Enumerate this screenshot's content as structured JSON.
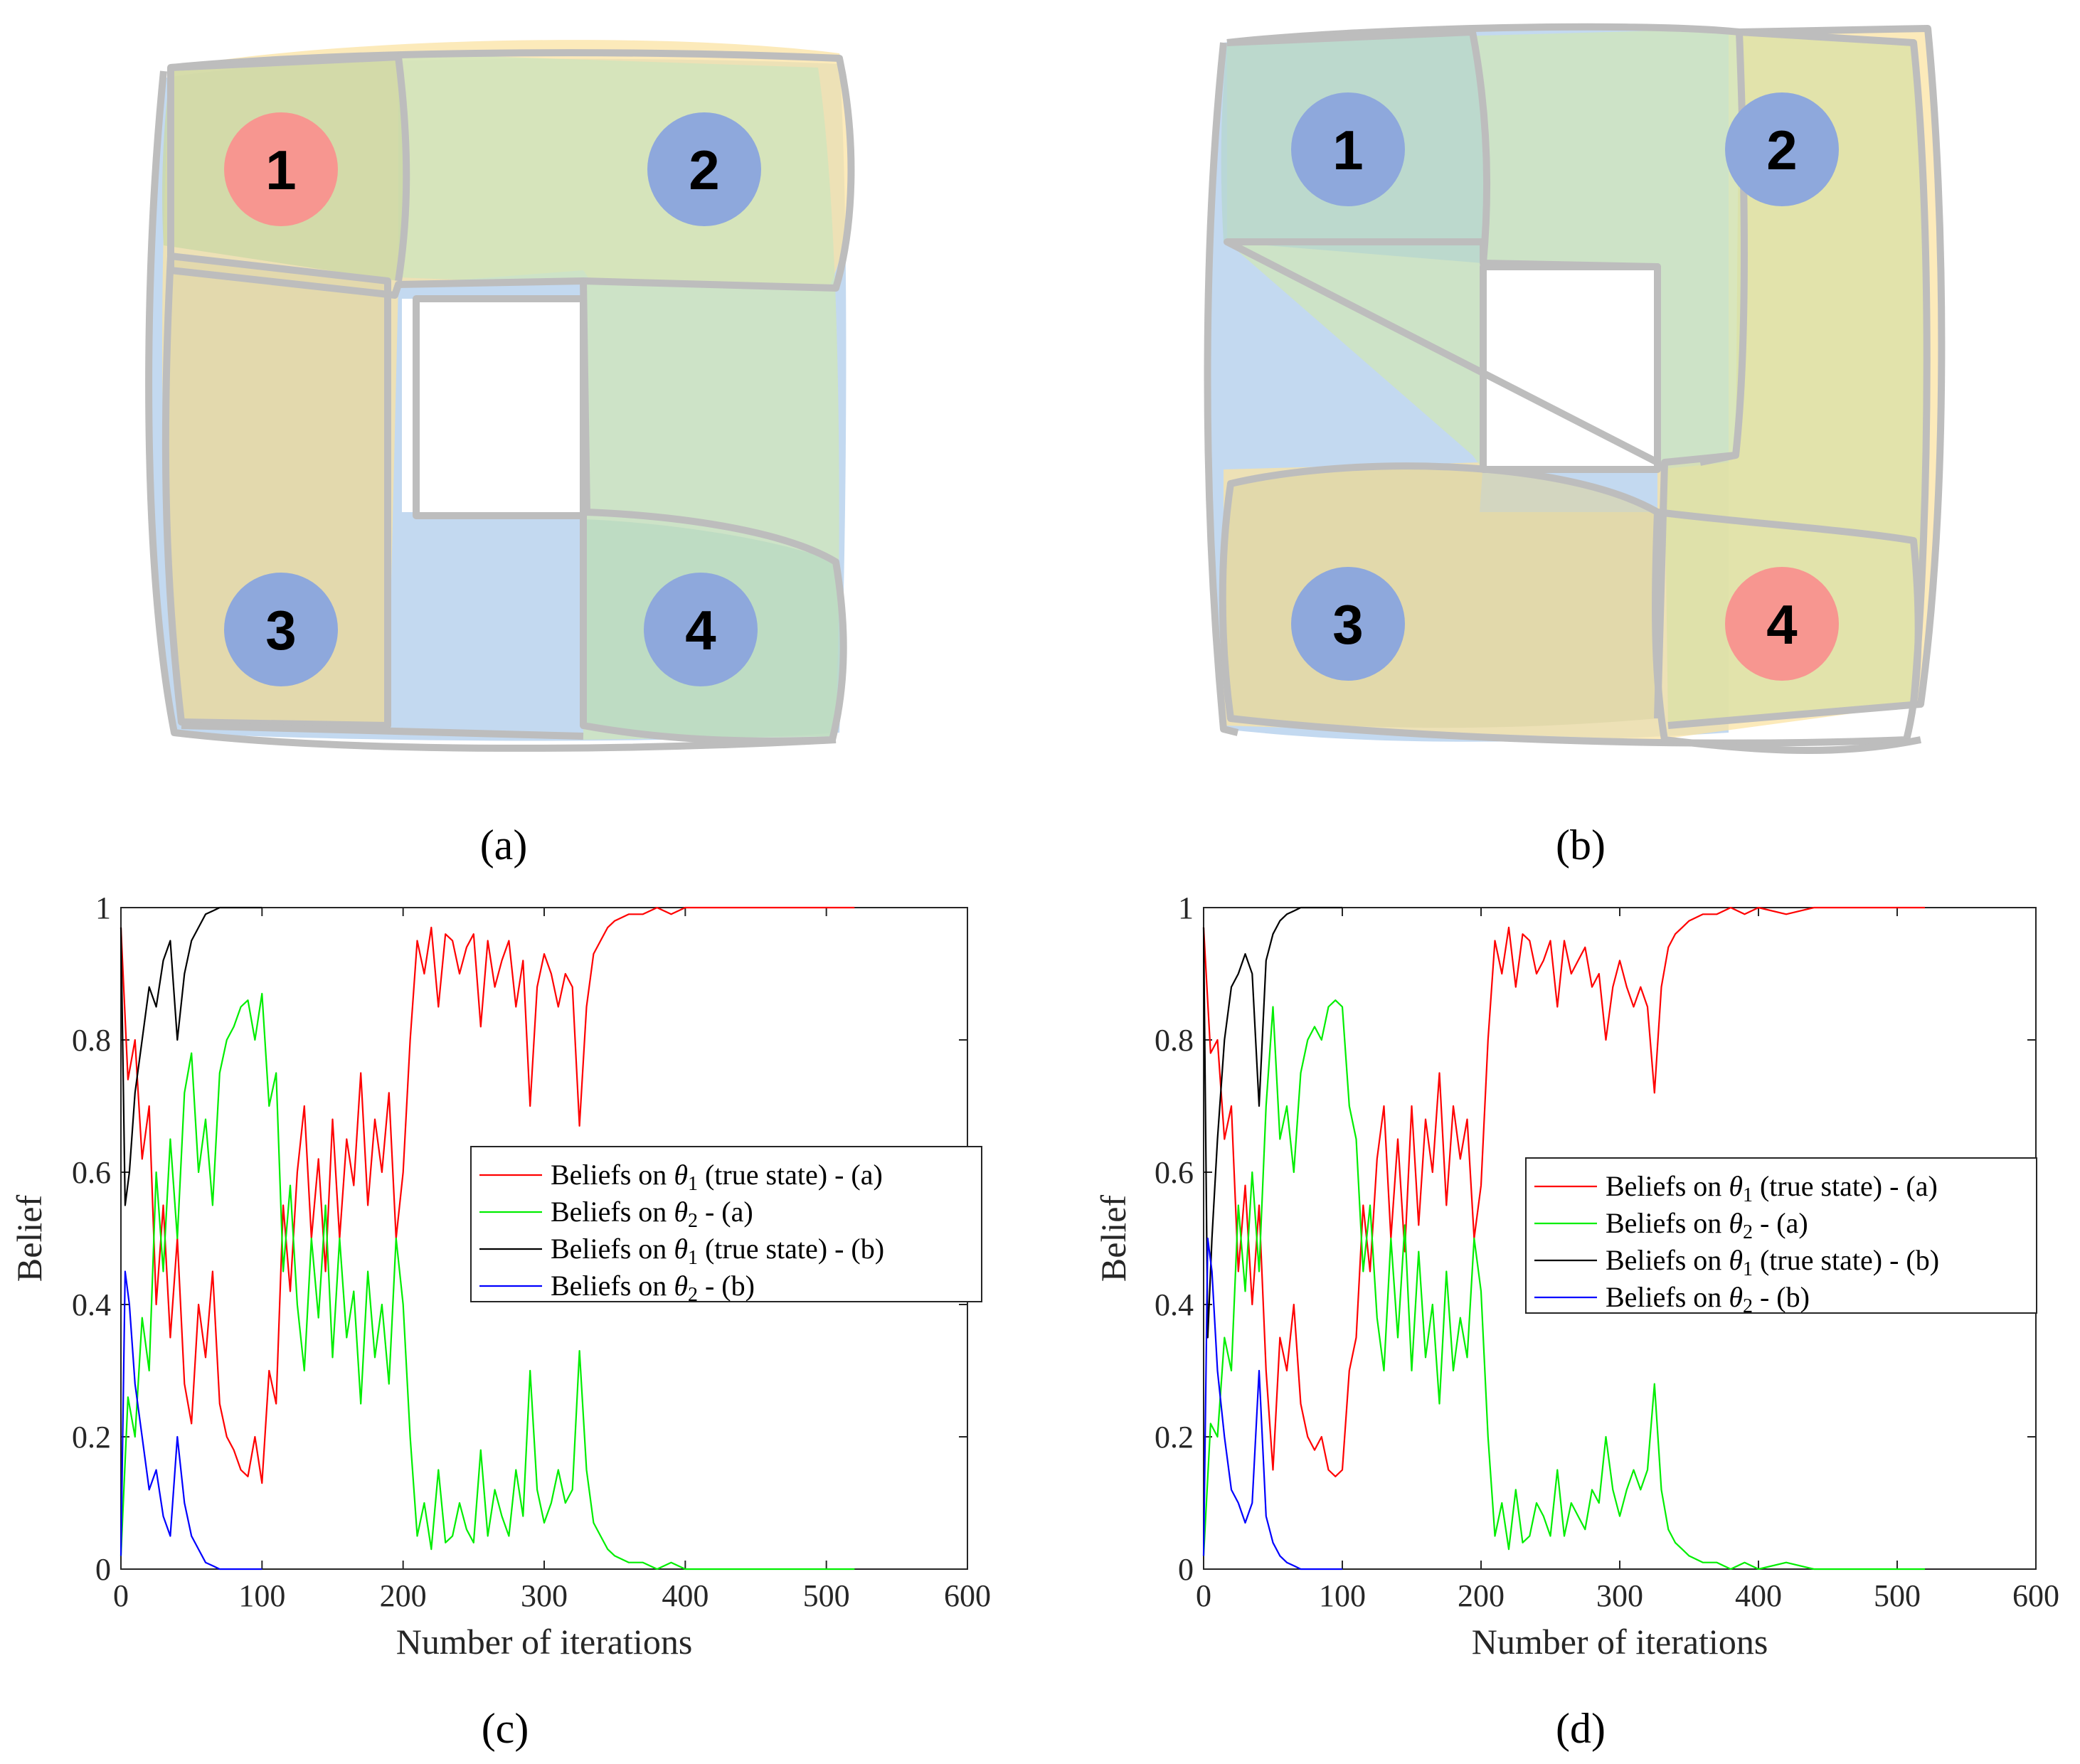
{
  "captions": {
    "a": "(a)",
    "b": "(b)",
    "c": "(c)",
    "d": "(d)"
  },
  "diagrams": [
    {
      "id": "a",
      "nodes": [
        {
          "label": "1",
          "color": "#f79690"
        },
        {
          "label": "2",
          "color": "#8ea8dc"
        },
        {
          "label": "3",
          "color": "#8ea8dc"
        },
        {
          "label": "4",
          "color": "#8ea8dc"
        }
      ]
    },
    {
      "id": "b",
      "nodes": [
        {
          "label": "1",
          "color": "#8ea8dc"
        },
        {
          "label": "2",
          "color": "#8ea8dc"
        },
        {
          "label": "3",
          "color": "#8ea8dc"
        },
        {
          "label": "4",
          "color": "#f79690"
        }
      ]
    }
  ],
  "region_colors": {
    "blue": "#a9c9ea",
    "yellow": "#fbe3a3",
    "green": "#cfe5bd",
    "olive": "#d9e0a6",
    "outline": "#bdbdbd"
  },
  "chart_data": [
    {
      "type": "line",
      "panel": "c",
      "xlabel": "Number of iterations",
      "ylabel": "Belief",
      "xlim": [
        0,
        600
      ],
      "ylim": [
        0,
        1
      ],
      "xticks": [
        "0",
        "100",
        "200",
        "300",
        "400",
        "500",
        "600"
      ],
      "yticks": [
        "0",
        "0.2",
        "0.4",
        "0.6",
        "0.8",
        "1"
      ],
      "legend_position": "middle-right",
      "series": [
        {
          "name": "Beliefs on θ1 (true state) - (a)",
          "legend_main": "Beliefs on ",
          "legend_sym": "θ",
          "legend_sub": "1",
          "legend_rest": " (true state) - (a)",
          "color": "#ff0000",
          "x": [
            0,
            5,
            10,
            15,
            20,
            25,
            30,
            35,
            40,
            45,
            50,
            55,
            60,
            65,
            70,
            75,
            80,
            85,
            90,
            95,
            100,
            105,
            110,
            115,
            120,
            125,
            130,
            135,
            140,
            145,
            150,
            155,
            160,
            165,
            170,
            175,
            180,
            185,
            190,
            195,
            200,
            205,
            210,
            215,
            220,
            225,
            230,
            235,
            240,
            245,
            250,
            255,
            260,
            265,
            270,
            275,
            280,
            285,
            290,
            295,
            300,
            305,
            310,
            315,
            320,
            325,
            330,
            335,
            340,
            345,
            350,
            360,
            370,
            380,
            390,
            400,
            420,
            440,
            460,
            480,
            500,
            520
          ],
          "y": [
            0.97,
            0.74,
            0.8,
            0.62,
            0.7,
            0.4,
            0.55,
            0.35,
            0.5,
            0.28,
            0.22,
            0.4,
            0.32,
            0.45,
            0.25,
            0.2,
            0.18,
            0.15,
            0.14,
            0.2,
            0.13,
            0.3,
            0.25,
            0.55,
            0.42,
            0.6,
            0.7,
            0.5,
            0.62,
            0.45,
            0.68,
            0.5,
            0.65,
            0.58,
            0.75,
            0.55,
            0.68,
            0.6,
            0.72,
            0.5,
            0.6,
            0.8,
            0.95,
            0.9,
            0.97,
            0.85,
            0.96,
            0.95,
            0.9,
            0.94,
            0.96,
            0.82,
            0.95,
            0.88,
            0.92,
            0.95,
            0.85,
            0.92,
            0.7,
            0.88,
            0.93,
            0.9,
            0.85,
            0.9,
            0.88,
            0.67,
            0.85,
            0.93,
            0.95,
            0.97,
            0.98,
            0.99,
            0.99,
            1.0,
            0.99,
            1.0,
            1.0,
            1.0,
            1.0,
            1.0,
            1.0,
            1.0
          ]
        },
        {
          "name": "Beliefs on θ2 - (a)",
          "legend_main": "Beliefs on ",
          "legend_sym": "θ",
          "legend_sub": "2",
          "legend_rest": " - (a)",
          "color": "#00ee00",
          "x": [
            0,
            5,
            10,
            15,
            20,
            25,
            30,
            35,
            40,
            45,
            50,
            55,
            60,
            65,
            70,
            75,
            80,
            85,
            90,
            95,
            100,
            105,
            110,
            115,
            120,
            125,
            130,
            135,
            140,
            145,
            150,
            155,
            160,
            165,
            170,
            175,
            180,
            185,
            190,
            195,
            200,
            205,
            210,
            215,
            220,
            225,
            230,
            235,
            240,
            245,
            250,
            255,
            260,
            265,
            270,
            275,
            280,
            285,
            290,
            295,
            300,
            305,
            310,
            315,
            320,
            325,
            330,
            335,
            340,
            345,
            350,
            360,
            370,
            380,
            390,
            400,
            420,
            440,
            460,
            480,
            500,
            520
          ],
          "y": [
            0.02,
            0.26,
            0.2,
            0.38,
            0.3,
            0.6,
            0.45,
            0.65,
            0.5,
            0.72,
            0.78,
            0.6,
            0.68,
            0.55,
            0.75,
            0.8,
            0.82,
            0.85,
            0.86,
            0.8,
            0.87,
            0.7,
            0.75,
            0.45,
            0.58,
            0.4,
            0.3,
            0.5,
            0.38,
            0.55,
            0.32,
            0.5,
            0.35,
            0.42,
            0.25,
            0.45,
            0.32,
            0.4,
            0.28,
            0.5,
            0.4,
            0.2,
            0.05,
            0.1,
            0.03,
            0.15,
            0.04,
            0.05,
            0.1,
            0.06,
            0.04,
            0.18,
            0.05,
            0.12,
            0.08,
            0.05,
            0.15,
            0.08,
            0.3,
            0.12,
            0.07,
            0.1,
            0.15,
            0.1,
            0.12,
            0.33,
            0.15,
            0.07,
            0.05,
            0.03,
            0.02,
            0.01,
            0.01,
            0.0,
            0.01,
            0.0,
            0.0,
            0.0,
            0.0,
            0.0,
            0.0,
            0.0
          ]
        },
        {
          "name": "Beliefs on θ1 (true state) - (b)",
          "legend_main": "Beliefs on ",
          "legend_sym": "θ",
          "legend_sub": "1",
          "legend_rest": " (true state) - (b)",
          "color": "#000000",
          "x": [
            0,
            3,
            6,
            10,
            15,
            20,
            25,
            30,
            35,
            40,
            45,
            50,
            55,
            60,
            65,
            70,
            75,
            80,
            85,
            90,
            95,
            100
          ],
          "y": [
            0.97,
            0.55,
            0.6,
            0.72,
            0.8,
            0.88,
            0.85,
            0.92,
            0.95,
            0.8,
            0.9,
            0.95,
            0.97,
            0.99,
            0.995,
            1.0,
            1.0,
            1.0,
            1.0,
            1.0,
            1.0,
            1.0
          ]
        },
        {
          "name": "Beliefs on θ2 - (b)",
          "legend_main": "Beliefs on ",
          "legend_sym": "θ",
          "legend_sub": "2",
          "legend_rest": " - (b)",
          "color": "#0000ff",
          "x": [
            0,
            3,
            6,
            10,
            15,
            20,
            25,
            30,
            35,
            40,
            45,
            50,
            55,
            60,
            65,
            70,
            75,
            80,
            85,
            90,
            95,
            100
          ],
          "y": [
            0.02,
            0.45,
            0.4,
            0.28,
            0.2,
            0.12,
            0.15,
            0.08,
            0.05,
            0.2,
            0.1,
            0.05,
            0.03,
            0.01,
            0.005,
            0.0,
            0.0,
            0.0,
            0.0,
            0.0,
            0.0,
            0.0
          ]
        }
      ]
    },
    {
      "type": "line",
      "panel": "d",
      "xlabel": "Number of iterations",
      "ylabel": "Belief",
      "xlim": [
        0,
        600
      ],
      "ylim": [
        0,
        1
      ],
      "xticks": [
        "0",
        "100",
        "200",
        "300",
        "400",
        "500",
        "600"
      ],
      "yticks": [
        "0",
        "0.2",
        "0.4",
        "0.6",
        "0.8",
        "1"
      ],
      "legend_position": "middle-right",
      "series": [
        {
          "name": "Beliefs on θ1 (true state) - (a)",
          "legend_main": "Beliefs on ",
          "legend_sym": "θ",
          "legend_sub": "1",
          "legend_rest": " (true state) - (a)",
          "color": "#ff0000",
          "x": [
            0,
            5,
            10,
            15,
            20,
            25,
            30,
            35,
            40,
            45,
            50,
            55,
            60,
            65,
            70,
            75,
            80,
            85,
            90,
            95,
            100,
            105,
            110,
            115,
            120,
            125,
            130,
            135,
            140,
            145,
            150,
            155,
            160,
            165,
            170,
            175,
            180,
            185,
            190,
            195,
            200,
            205,
            210,
            215,
            220,
            225,
            230,
            235,
            240,
            245,
            250,
            255,
            260,
            265,
            270,
            275,
            280,
            285,
            290,
            295,
            300,
            305,
            310,
            315,
            320,
            325,
            330,
            335,
            340,
            345,
            350,
            360,
            370,
            380,
            390,
            400,
            420,
            440,
            460,
            480,
            500,
            520
          ],
          "y": [
            0.97,
            0.78,
            0.8,
            0.65,
            0.7,
            0.45,
            0.58,
            0.4,
            0.55,
            0.3,
            0.15,
            0.35,
            0.3,
            0.4,
            0.25,
            0.2,
            0.18,
            0.2,
            0.15,
            0.14,
            0.15,
            0.3,
            0.35,
            0.55,
            0.45,
            0.62,
            0.7,
            0.5,
            0.65,
            0.48,
            0.7,
            0.52,
            0.68,
            0.6,
            0.75,
            0.55,
            0.7,
            0.62,
            0.68,
            0.5,
            0.58,
            0.8,
            0.95,
            0.9,
            0.97,
            0.88,
            0.96,
            0.95,
            0.9,
            0.92,
            0.95,
            0.85,
            0.95,
            0.9,
            0.92,
            0.94,
            0.88,
            0.9,
            0.8,
            0.88,
            0.92,
            0.88,
            0.85,
            0.88,
            0.85,
            0.72,
            0.88,
            0.94,
            0.96,
            0.97,
            0.98,
            0.99,
            0.99,
            1.0,
            0.99,
            1.0,
            0.99,
            1.0,
            1.0,
            1.0,
            1.0,
            1.0
          ]
        },
        {
          "name": "Beliefs on θ2 - (a)",
          "legend_main": "Beliefs on ",
          "legend_sym": "θ",
          "legend_sub": "2",
          "legend_rest": " - (a)",
          "color": "#00ee00",
          "x": [
            0,
            5,
            10,
            15,
            20,
            25,
            30,
            35,
            40,
            45,
            50,
            55,
            60,
            65,
            70,
            75,
            80,
            85,
            90,
            95,
            100,
            105,
            110,
            115,
            120,
            125,
            130,
            135,
            140,
            145,
            150,
            155,
            160,
            165,
            170,
            175,
            180,
            185,
            190,
            195,
            200,
            205,
            210,
            215,
            220,
            225,
            230,
            235,
            240,
            245,
            250,
            255,
            260,
            265,
            270,
            275,
            280,
            285,
            290,
            295,
            300,
            305,
            310,
            315,
            320,
            325,
            330,
            335,
            340,
            345,
            350,
            360,
            370,
            380,
            390,
            400,
            420,
            440,
            460,
            480,
            500,
            520
          ],
          "y": [
            0.02,
            0.22,
            0.2,
            0.35,
            0.3,
            0.55,
            0.42,
            0.6,
            0.45,
            0.7,
            0.85,
            0.65,
            0.7,
            0.6,
            0.75,
            0.8,
            0.82,
            0.8,
            0.85,
            0.86,
            0.85,
            0.7,
            0.65,
            0.45,
            0.55,
            0.38,
            0.3,
            0.5,
            0.35,
            0.52,
            0.3,
            0.48,
            0.32,
            0.4,
            0.25,
            0.45,
            0.3,
            0.38,
            0.32,
            0.5,
            0.42,
            0.2,
            0.05,
            0.1,
            0.03,
            0.12,
            0.04,
            0.05,
            0.1,
            0.08,
            0.05,
            0.15,
            0.05,
            0.1,
            0.08,
            0.06,
            0.12,
            0.1,
            0.2,
            0.12,
            0.08,
            0.12,
            0.15,
            0.12,
            0.15,
            0.28,
            0.12,
            0.06,
            0.04,
            0.03,
            0.02,
            0.01,
            0.01,
            0.0,
            0.01,
            0.0,
            0.01,
            0.0,
            0.0,
            0.0,
            0.0,
            0.0
          ]
        },
        {
          "name": "Beliefs on θ1 (true state) - (b)",
          "legend_main": "Beliefs on ",
          "legend_sym": "θ",
          "legend_sub": "1",
          "legend_rest": " (true state) - (b)",
          "color": "#000000",
          "x": [
            0,
            3,
            6,
            10,
            15,
            20,
            25,
            30,
            35,
            40,
            45,
            50,
            55,
            60,
            65,
            70,
            75,
            80,
            85,
            90,
            95,
            100
          ],
          "y": [
            0.97,
            0.35,
            0.5,
            0.65,
            0.8,
            0.88,
            0.9,
            0.93,
            0.9,
            0.7,
            0.92,
            0.96,
            0.98,
            0.99,
            0.995,
            1.0,
            1.0,
            1.0,
            1.0,
            1.0,
            1.0,
            1.0
          ]
        },
        {
          "name": "Beliefs on θ2 - (b)",
          "legend_main": "Beliefs on ",
          "legend_sym": "θ",
          "legend_sub": "2",
          "legend_rest": " - (b)",
          "color": "#0000ff",
          "x": [
            0,
            3,
            6,
            10,
            15,
            20,
            25,
            30,
            35,
            40,
            45,
            50,
            55,
            60,
            65,
            70,
            75,
            80,
            85,
            90,
            95,
            100
          ],
          "y": [
            0.02,
            0.5,
            0.45,
            0.3,
            0.2,
            0.12,
            0.1,
            0.07,
            0.1,
            0.3,
            0.08,
            0.04,
            0.02,
            0.01,
            0.005,
            0.0,
            0.0,
            0.0,
            0.0,
            0.0,
            0.0,
            0.0
          ]
        }
      ]
    }
  ]
}
